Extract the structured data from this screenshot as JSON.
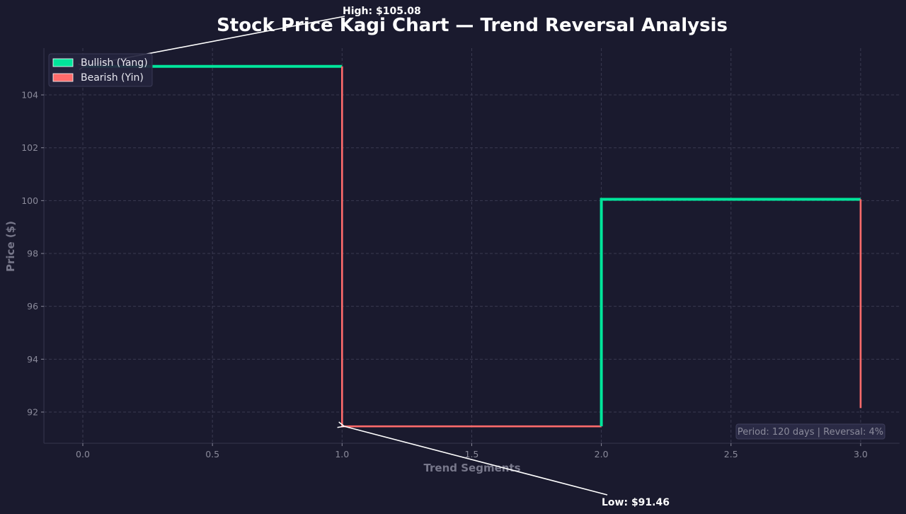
{
  "chart_data": {
    "type": "line",
    "subtype": "kagi",
    "title": "Stock Price Kagi Chart — Trend Reversal Analysis",
    "xlabel": "Trend Segments",
    "ylabel": "Price ($)",
    "xlim": [
      -0.15,
      3.15
    ],
    "ylim": [
      90.82,
      105.77
    ],
    "xticks": [
      "0.0",
      "0.5",
      "1.0",
      "1.5",
      "2.0",
      "2.5",
      "3.0"
    ],
    "yticks": [
      "92",
      "94",
      "96",
      "98",
      "100",
      "102",
      "104"
    ],
    "grid": true,
    "legend_position": "upper left",
    "segments": [
      {
        "type": "bullish",
        "points": [
          [
            0,
            105.08
          ],
          [
            1,
            105.08
          ]
        ]
      },
      {
        "type": "bearish",
        "points": [
          [
            1,
            105.08
          ],
          [
            1,
            91.46
          ],
          [
            2,
            91.46
          ]
        ]
      },
      {
        "type": "bullish",
        "points": [
          [
            2,
            91.46
          ],
          [
            2,
            100.05
          ],
          [
            3,
            100.05
          ]
        ]
      },
      {
        "type": "bearish",
        "points": [
          [
            3,
            100.05
          ],
          [
            3,
            92.15
          ]
        ]
      }
    ],
    "series": [
      {
        "name": "Bullish (Yang)",
        "color": "#00e59b"
      },
      {
        "name": "Bearish (Yin)",
        "color": "#ff6b6b"
      }
    ],
    "annotations": [
      {
        "text": "High: $105.08",
        "xy": [
          0,
          105.08
        ]
      },
      {
        "text": "Low: $91.46",
        "xy": [
          1,
          91.46
        ]
      }
    ],
    "info_box": "Period: 120 days | Reversal: 4%"
  },
  "colors": {
    "background": "#1a1a2e",
    "bullish": "#00e59b",
    "bearish": "#ff6b6b",
    "grid": "#3a3a50",
    "text_muted": "#8a8a9a"
  }
}
